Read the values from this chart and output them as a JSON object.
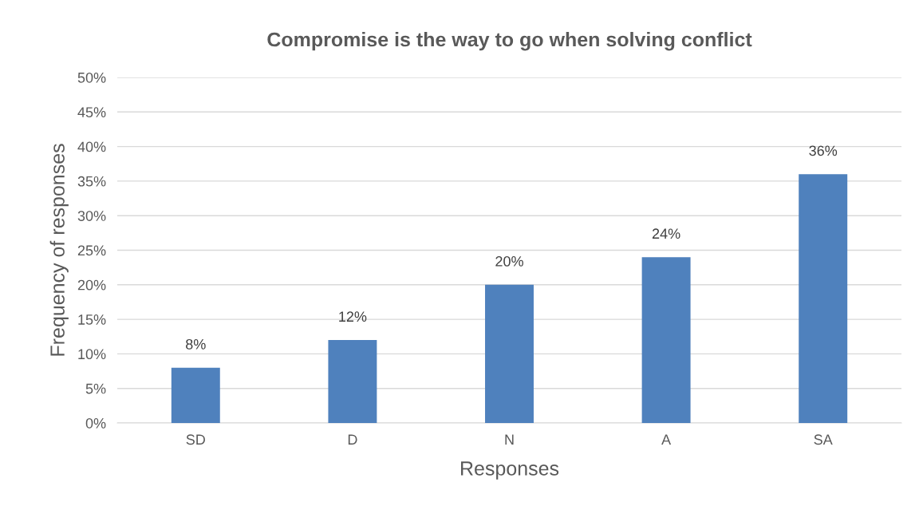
{
  "chart_data": {
    "type": "bar",
    "title": "Compromise is the way to go when solving conflict",
    "xlabel": "Responses",
    "ylabel": "Frequency of responses",
    "categories": [
      "SD",
      "D",
      "N",
      "A",
      "SA"
    ],
    "values": [
      8,
      12,
      20,
      24,
      36
    ],
    "color": "#4f81bd",
    "value_labels": [
      "8%",
      "12%",
      "20%",
      "24%",
      "36%"
    ],
    "ylim": [
      0,
      50
    ],
    "yticks": [
      {
        "value": 0,
        "label": "0%"
      },
      {
        "value": 5,
        "label": "5%"
      },
      {
        "value": 10,
        "label": "10%"
      },
      {
        "value": 15,
        "label": "15%"
      },
      {
        "value": 20,
        "label": "20%"
      },
      {
        "value": 25,
        "label": "25%"
      },
      {
        "value": 30,
        "label": "30%"
      },
      {
        "value": 35,
        "label": "35%"
      },
      {
        "value": 40,
        "label": "40%"
      },
      {
        "value": 45,
        "label": "45%"
      },
      {
        "value": 50,
        "label": "50%"
      }
    ],
    "grid": "y",
    "legend": false
  }
}
